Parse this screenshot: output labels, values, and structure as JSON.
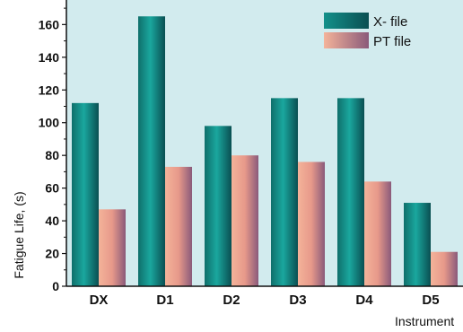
{
  "chart_data": {
    "type": "bar",
    "title": "",
    "xlabel": "Instrument",
    "ylabel": "Fatigue Life, (s)",
    "categories": [
      "DX",
      "D1",
      "D2",
      "D3",
      "D4",
      "D5"
    ],
    "series": [
      {
        "name": "X- file",
        "values": [
          112,
          165,
          98,
          115,
          115,
          51
        ],
        "color": "#13908a"
      },
      {
        "name": "PT file",
        "values": [
          47,
          73,
          80,
          76,
          64,
          21
        ],
        "color": "#e59a88"
      }
    ],
    "ylim": [
      0,
      175
    ],
    "yticks": [
      0,
      20,
      40,
      60,
      80,
      100,
      120,
      140,
      160
    ],
    "grid": false,
    "legend_position": "top-right",
    "plot_background": "#d2ebee"
  }
}
